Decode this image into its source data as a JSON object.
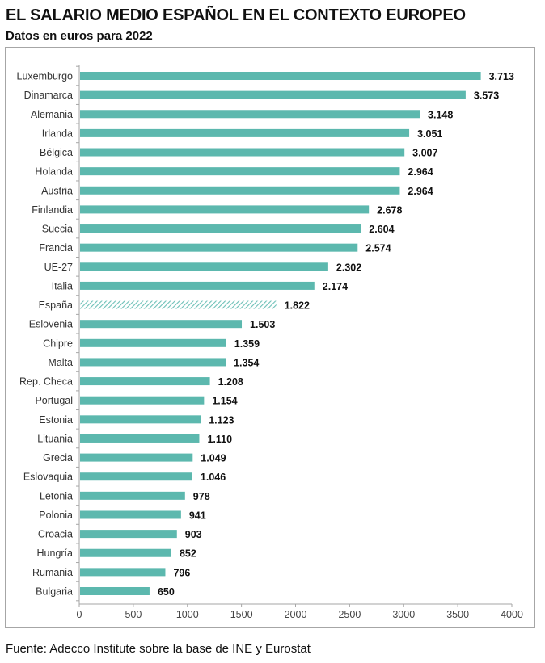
{
  "chart_data": {
    "type": "bar",
    "orientation": "horizontal",
    "title": "EL SALARIO MEDIO ESPAÑOL EN EL CONTEXTO EUROPEO",
    "subtitle": "Datos en euros para 2022",
    "categories": [
      "Luxemburgo",
      "Dinamarca",
      "Alemania",
      "Irlanda",
      "Bélgica",
      "Holanda",
      "Austria",
      "Finlandia",
      "Suecia",
      "Francia",
      "UE-27",
      "Italia",
      "España",
      "Eslovenia",
      "Chipre",
      "Malta",
      "Rep. Checa",
      "Portugal",
      "Estonia",
      "Lituania",
      "Grecia",
      "Eslovaquia",
      "Letonia",
      "Polonia",
      "Croacia",
      "Hungría",
      "Rumania",
      "Bulgaria"
    ],
    "values": [
      3713,
      3573,
      3148,
      3051,
      3007,
      2964,
      2964,
      2678,
      2604,
      2574,
      2302,
      2174,
      1822,
      1503,
      1359,
      1354,
      1208,
      1154,
      1123,
      1110,
      1049,
      1046,
      978,
      941,
      903,
      852,
      796,
      650
    ],
    "data_labels": [
      "3.713",
      "3.573",
      "3.148",
      "3.051",
      "3.007",
      "2.964",
      "2.964",
      "2.678",
      "2.604",
      "2.574",
      "2.302",
      "2.174",
      "1.822",
      "1.503",
      "1.359",
      "1.354",
      "1.208",
      "1.154",
      "1.123",
      "1.110",
      "1.049",
      "1.046",
      "978",
      "941",
      "903",
      "852",
      "796",
      "650"
    ],
    "highlight": {
      "category": "España",
      "pattern": "hatched"
    },
    "xlim": [
      0,
      4000
    ],
    "xticks": [
      0,
      500,
      1000,
      1500,
      2000,
      2500,
      3000,
      3500,
      4000
    ],
    "xlabel": "",
    "ylabel": "",
    "grid": false,
    "legend": "none",
    "colors": {
      "bar": "#5cb8ae",
      "highlight": "#7fcac2",
      "frame": "#a6a6a6"
    }
  },
  "source": "Fuente: Adecco Institute sobre la base de INE y Eurostat"
}
